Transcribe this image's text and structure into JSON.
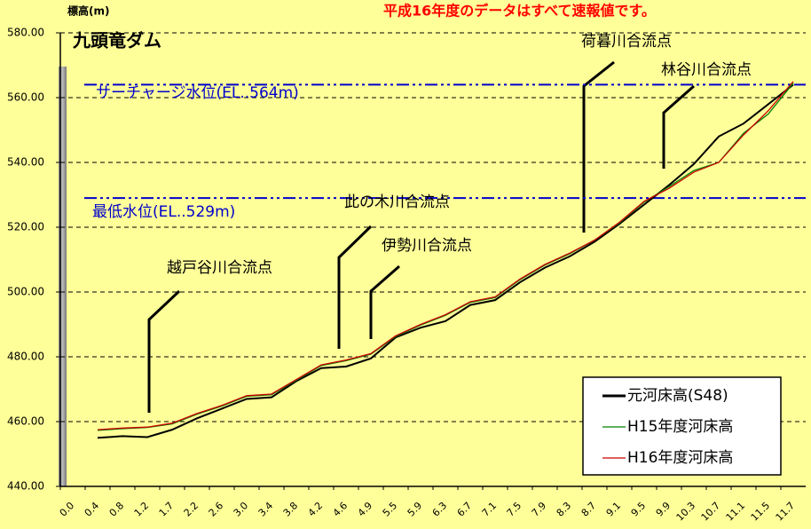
{
  "chart_data": {
    "type": "line",
    "title": "九頭竜ダム",
    "y_axis_label": "標高(m)",
    "note": "平成16年度のデータはすべて速報値です。",
    "categories": [
      "0.0",
      "0.4",
      "0.8",
      "1.2",
      "1.7",
      "2.2",
      "2.6",
      "3.0",
      "3.4",
      "3.8",
      "4.2",
      "4.6",
      "4.9",
      "5.5",
      "5.9",
      "6.3",
      "6.7",
      "7.1",
      "7.5",
      "7.9",
      "8.3",
      "8.7",
      "9.1",
      "9.5",
      "9.9",
      "10.3",
      "10.7",
      "11.1",
      "11.5",
      "11.7"
    ],
    "series": [
      {
        "name": "元河床高(S48)",
        "color": "#000000",
        "values": [
          null,
          455,
          455.5,
          455.2,
          457.5,
          461,
          464,
          467,
          467.5,
          472.5,
          476.5,
          477,
          479.5,
          486,
          489,
          491,
          496,
          497.5,
          503,
          507.5,
          511,
          515.5,
          521,
          527,
          533,
          539.5,
          548,
          552,
          558,
          564
        ]
      },
      {
        "name": "H15年度河床高",
        "color": "#008000",
        "values": [
          null,
          457.3,
          457.8,
          458.2,
          459.3,
          462.3,
          464.8,
          467.8,
          468.3,
          472.8,
          477.3,
          478.8,
          480.8,
          486.3,
          489.8,
          492.8,
          496.8,
          498.3,
          503.8,
          508.3,
          511.8,
          516,
          521.3,
          527.8,
          532.5,
          537.5,
          540,
          549,
          555,
          564.5
        ]
      },
      {
        "name": "H16年度河床高",
        "color": "#cc0000",
        "values": [
          null,
          457.5,
          458,
          458.3,
          459.5,
          462.5,
          465,
          468,
          468.5,
          473,
          477.5,
          479,
          481,
          486.5,
          490,
          493,
          497,
          498.5,
          504,
          508.5,
          512,
          516,
          521.5,
          528,
          532,
          537,
          540,
          548.5,
          556,
          565
        ]
      }
    ],
    "ylim": [
      440,
      580
    ],
    "yticks": [
      {
        "value": 440,
        "label": "440.00"
      },
      {
        "value": 460,
        "label": "460.00"
      },
      {
        "value": 480,
        "label": "480.00"
      },
      {
        "value": 500,
        "label": "500.00"
      },
      {
        "value": 520,
        "label": "520.00"
      },
      {
        "value": 540,
        "label": "540.00"
      },
      {
        "value": 560,
        "label": "560.00"
      },
      {
        "value": 580,
        "label": "580.00"
      }
    ],
    "grid": true,
    "reference_lines": [
      {
        "label": "サーチャージ水位(EL..564m)",
        "value": 564,
        "color": "#0000cc"
      },
      {
        "label": "最低水位(EL..529m)",
        "value": 529,
        "color": "#0000cc"
      }
    ],
    "annotations": [
      "荷暮川合流点",
      "林谷川合流点",
      "此の木川合流点",
      "伊勢川合流点",
      "越戸谷川合流点"
    ],
    "legend": "lower right"
  }
}
